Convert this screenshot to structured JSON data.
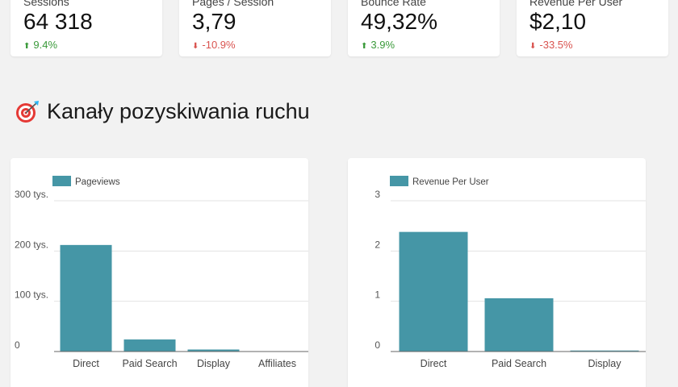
{
  "kpis": [
    {
      "label": "Sessions",
      "value": "64 318",
      "delta": "9.4%",
      "direction": "up"
    },
    {
      "label": "Pages / Session",
      "value": "3,79",
      "delta": "-10.9%",
      "direction": "down"
    },
    {
      "label": "Bounce Rate",
      "value": "49,32%",
      "delta": "3.9%",
      "direction": "up"
    },
    {
      "label": "Revenue Per User",
      "value": "$2,10",
      "delta": "-33.5%",
      "direction": "down"
    }
  ],
  "section": {
    "title": "Kanały pozyskiwania ruchu",
    "icon": "target-dart-icon"
  },
  "colors": {
    "bar": "#4596a6",
    "up": "#3a9a3a",
    "down": "#d9534f"
  },
  "chart_data": [
    {
      "type": "bar",
      "series": [
        {
          "name": "Pageviews",
          "values": [
            212000,
            24000,
            4000,
            300
          ]
        }
      ],
      "categories": [
        "Direct",
        "Paid Search",
        "Display",
        "Affiliates"
      ],
      "yticks": [
        {
          "v": 0,
          "label": "0"
        },
        {
          "v": 100000,
          "label": "100 tys."
        },
        {
          "v": 200000,
          "label": "200 tys."
        },
        {
          "v": 300000,
          "label": "300 tys."
        }
      ],
      "ylim": [
        0,
        300000
      ],
      "legend": "top-left",
      "grid": true
    },
    {
      "type": "bar",
      "series": [
        {
          "name": "Revenue Per User",
          "values": [
            2.38,
            1.06,
            0.02
          ]
        }
      ],
      "categories": [
        "Direct",
        "Paid Search",
        "Display"
      ],
      "yticks": [
        {
          "v": 0,
          "label": "0"
        },
        {
          "v": 1,
          "label": "1"
        },
        {
          "v": 2,
          "label": "2"
        },
        {
          "v": 3,
          "label": "3"
        }
      ],
      "ylim": [
        0,
        3
      ],
      "legend": "top-left",
      "grid": true
    }
  ]
}
